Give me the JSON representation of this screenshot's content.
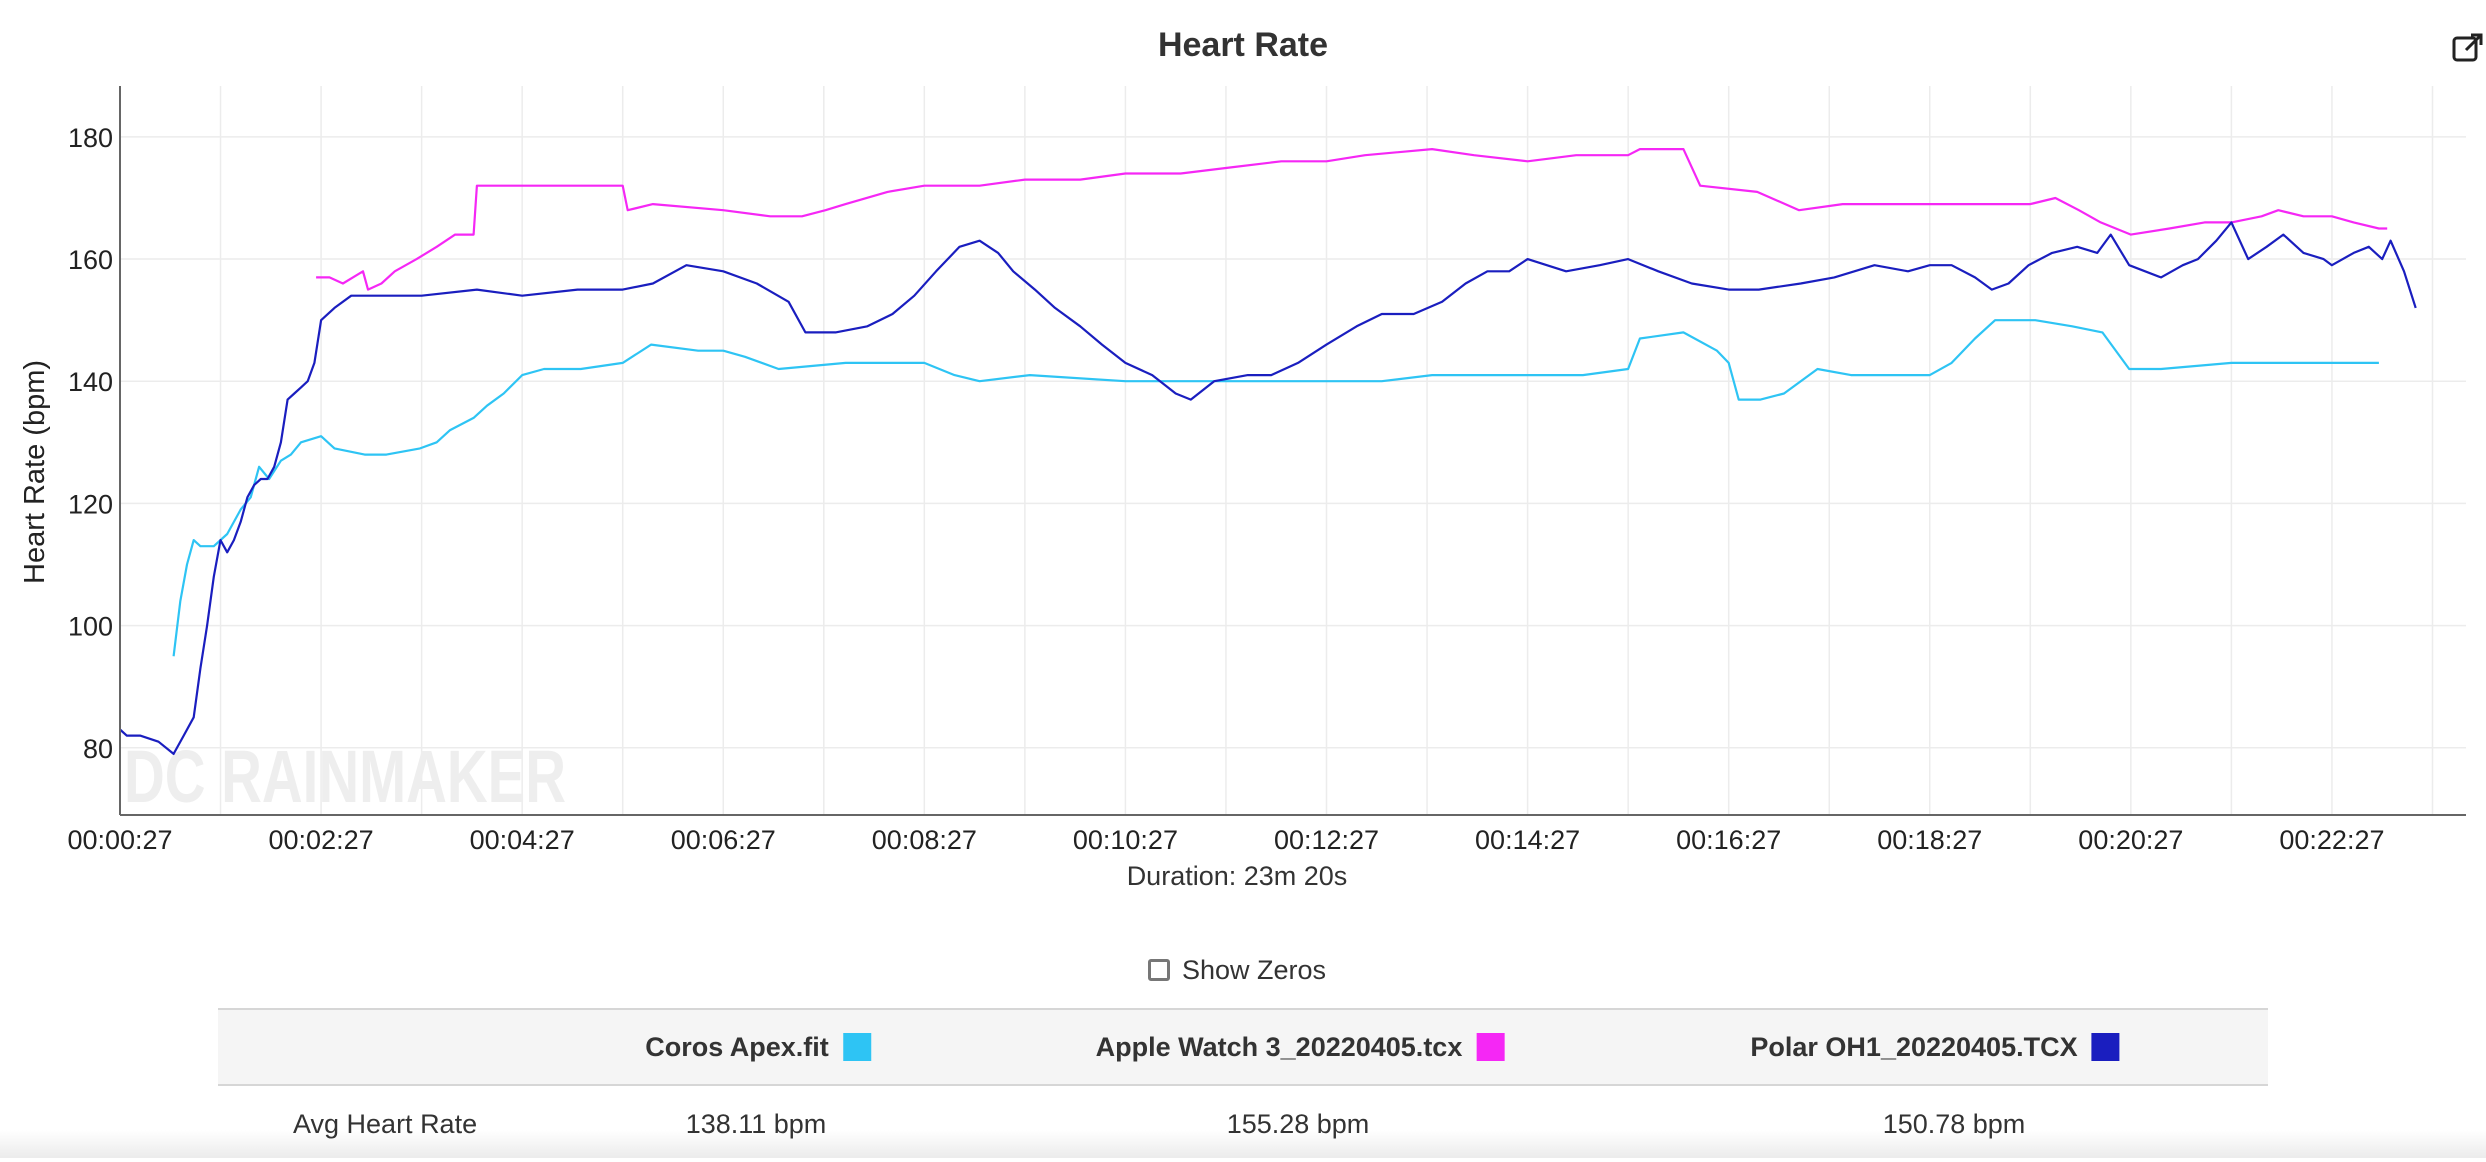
{
  "header": {
    "title": "Heart Rate",
    "export_icon": "external-link-icon"
  },
  "chart_data": {
    "type": "line",
    "title": "Heart Rate",
    "xlabel": "Duration: 23m 20s",
    "ylabel": "Heart Rate (bpm)",
    "xlim_seconds": [
      27,
      1427
    ],
    "ylim": [
      69,
      188
    ],
    "yticks": [
      80,
      100,
      120,
      140,
      160,
      180
    ],
    "xticks": [
      "00:00:27",
      "00:02:27",
      "00:04:27",
      "00:06:27",
      "00:08:27",
      "00:10:27",
      "00:12:27",
      "00:14:27",
      "00:16:27",
      "00:18:27",
      "00:20:27",
      "00:22:27"
    ],
    "grid": true,
    "watermark": "DC RAINMAKER",
    "series": [
      {
        "name": "Coros Apex.fit",
        "color": "#2ec4f4",
        "points": [
          [
            "00:00:59",
            95
          ],
          [
            "00:01:03",
            104
          ],
          [
            "00:01:07",
            110
          ],
          [
            "00:01:11",
            114
          ],
          [
            "00:01:15",
            113
          ],
          [
            "00:01:23",
            113
          ],
          [
            "00:01:31",
            115
          ],
          [
            "00:01:39",
            119
          ],
          [
            "00:01:45",
            121
          ],
          [
            "00:01:50",
            126
          ],
          [
            "00:01:56",
            124
          ],
          [
            "00:02:03",
            127
          ],
          [
            "00:02:09",
            128
          ],
          [
            "00:02:15",
            130
          ],
          [
            "00:02:27",
            131
          ],
          [
            "00:02:35",
            129
          ],
          [
            "00:02:53",
            128
          ],
          [
            "00:03:06",
            128
          ],
          [
            "00:03:26",
            129
          ],
          [
            "00:03:36",
            130
          ],
          [
            "00:03:44",
            132
          ],
          [
            "00:03:58",
            134
          ],
          [
            "00:04:06",
            136
          ],
          [
            "00:04:16",
            138
          ],
          [
            "00:04:27",
            141
          ],
          [
            "00:04:40",
            142
          ],
          [
            "00:05:02",
            142
          ],
          [
            "00:05:27",
            143
          ],
          [
            "00:05:44",
            146
          ],
          [
            "00:06:12",
            145
          ],
          [
            "00:06:27",
            145
          ],
          [
            "00:06:40",
            144
          ],
          [
            "00:07:00",
            142
          ],
          [
            "00:07:40",
            143
          ],
          [
            "00:08:27",
            143
          ],
          [
            "00:08:45",
            141
          ],
          [
            "00:09:00",
            140
          ],
          [
            "00:09:30",
            141
          ],
          [
            "00:10:27",
            140
          ],
          [
            "00:11:00",
            140
          ],
          [
            "00:11:30",
            140
          ],
          [
            "00:12:27",
            140
          ],
          [
            "00:13:00",
            140
          ],
          [
            "00:13:30",
            141
          ],
          [
            "00:14:27",
            141
          ],
          [
            "00:15:00",
            141
          ],
          [
            "00:15:27",
            142
          ],
          [
            "00:15:34",
            147
          ],
          [
            "00:16:00",
            148
          ],
          [
            "00:16:20",
            145
          ],
          [
            "00:16:27",
            143
          ],
          [
            "00:16:33",
            137
          ],
          [
            "00:16:46",
            137
          ],
          [
            "00:17:00",
            138
          ],
          [
            "00:17:20",
            142
          ],
          [
            "00:17:40",
            141
          ],
          [
            "00:18:27",
            141
          ],
          [
            "00:18:40",
            143
          ],
          [
            "00:18:54",
            147
          ],
          [
            "00:19:06",
            150
          ],
          [
            "00:19:30",
            150
          ],
          [
            "00:19:52",
            149
          ],
          [
            "00:20:10",
            148
          ],
          [
            "00:20:26",
            142
          ],
          [
            "00:20:45",
            142
          ],
          [
            "00:21:27",
            143
          ],
          [
            "00:22:00",
            143
          ],
          [
            "00:22:27",
            143
          ],
          [
            "00:22:55",
            143
          ]
        ]
      },
      {
        "name": "Apple Watch 3_20220405.tcx",
        "color": "#f527f5",
        "points": [
          [
            "00:02:24",
            157
          ],
          [
            "00:02:32",
            157
          ],
          [
            "00:02:40",
            156
          ],
          [
            "00:02:46",
            157
          ],
          [
            "00:02:52",
            158
          ],
          [
            "00:02:55",
            155
          ],
          [
            "00:03:03",
            156
          ],
          [
            "00:03:11",
            158
          ],
          [
            "00:03:24",
            160
          ],
          [
            "00:03:36",
            162
          ],
          [
            "00:03:47",
            164
          ],
          [
            "00:03:58",
            164
          ],
          [
            "00:04:00",
            172
          ],
          [
            "00:05:27",
            172
          ],
          [
            "00:05:30",
            168
          ],
          [
            "00:05:45",
            169
          ],
          [
            "00:06:27",
            168
          ],
          [
            "00:06:55",
            167
          ],
          [
            "00:07:14",
            167
          ],
          [
            "00:07:28",
            168
          ],
          [
            "00:07:40",
            169
          ],
          [
            "00:08:05",
            171
          ],
          [
            "00:08:27",
            172
          ],
          [
            "00:09:00",
            172
          ],
          [
            "00:09:27",
            173
          ],
          [
            "00:10:00",
            173
          ],
          [
            "00:10:27",
            174
          ],
          [
            "00:11:00",
            174
          ],
          [
            "00:11:30",
            175
          ],
          [
            "00:12:00",
            176
          ],
          [
            "00:12:27",
            176
          ],
          [
            "00:12:50",
            177
          ],
          [
            "00:13:30",
            178
          ],
          [
            "00:13:55",
            177
          ],
          [
            "00:14:27",
            176
          ],
          [
            "00:14:56",
            177
          ],
          [
            "00:15:27",
            177
          ],
          [
            "00:15:34",
            178
          ],
          [
            "00:16:00",
            178
          ],
          [
            "00:16:10",
            172
          ],
          [
            "00:16:44",
            171
          ],
          [
            "00:17:09",
            168
          ],
          [
            "00:17:35",
            169
          ],
          [
            "00:18:27",
            169
          ],
          [
            "00:19:00",
            169
          ],
          [
            "00:19:27",
            169
          ],
          [
            "00:19:42",
            170
          ],
          [
            "00:19:56",
            168
          ],
          [
            "00:20:09",
            166
          ],
          [
            "00:20:27",
            164
          ],
          [
            "00:20:50",
            165
          ],
          [
            "00:21:11",
            166
          ],
          [
            "00:21:27",
            166
          ],
          [
            "00:21:45",
            167
          ],
          [
            "00:21:55",
            168
          ],
          [
            "00:22:10",
            167
          ],
          [
            "00:22:27",
            167
          ],
          [
            "00:22:40",
            166
          ],
          [
            "00:22:55",
            165
          ],
          [
            "00:23:00",
            165
          ]
        ]
      },
      {
        "name": "Polar OH1_20220405.TCX",
        "color": "#1a1ebf",
        "points": [
          [
            "00:00:27",
            83
          ],
          [
            "00:00:31",
            82
          ],
          [
            "00:00:39",
            82
          ],
          [
            "00:00:50",
            81
          ],
          [
            "00:00:59",
            79
          ],
          [
            "00:01:05",
            82
          ],
          [
            "00:01:11",
            85
          ],
          [
            "00:01:15",
            93
          ],
          [
            "00:01:19",
            100
          ],
          [
            "00:01:23",
            108
          ],
          [
            "00:01:27",
            114
          ],
          [
            "00:01:31",
            112
          ],
          [
            "00:01:35",
            114
          ],
          [
            "00:01:39",
            117
          ],
          [
            "00:01:43",
            121
          ],
          [
            "00:01:47",
            123
          ],
          [
            "00:01:51",
            124
          ],
          [
            "00:01:55",
            124
          ],
          [
            "00:01:59",
            126
          ],
          [
            "00:02:03",
            130
          ],
          [
            "00:02:07",
            137
          ],
          [
            "00:02:11",
            138
          ],
          [
            "00:02:15",
            139
          ],
          [
            "00:02:19",
            140
          ],
          [
            "00:02:23",
            143
          ],
          [
            "00:02:27",
            150
          ],
          [
            "00:02:35",
            152
          ],
          [
            "00:02:45",
            154
          ],
          [
            "00:02:55",
            154
          ],
          [
            "00:03:27",
            154
          ],
          [
            "00:04:00",
            155
          ],
          [
            "00:04:27",
            154
          ],
          [
            "00:05:00",
            155
          ],
          [
            "00:05:27",
            155
          ],
          [
            "00:05:45",
            156
          ],
          [
            "00:06:05",
            159
          ],
          [
            "00:06:27",
            158
          ],
          [
            "00:06:47",
            156
          ],
          [
            "00:07:06",
            153
          ],
          [
            "00:07:16",
            148
          ],
          [
            "00:07:34",
            148
          ],
          [
            "00:07:53",
            149
          ],
          [
            "00:08:08",
            151
          ],
          [
            "00:08:21",
            154
          ],
          [
            "00:08:34",
            158
          ],
          [
            "00:08:48",
            162
          ],
          [
            "00:09:00",
            163
          ],
          [
            "00:09:11",
            161
          ],
          [
            "00:09:20",
            158
          ],
          [
            "00:09:33",
            155
          ],
          [
            "00:09:45",
            152
          ],
          [
            "00:10:00",
            149
          ],
          [
            "00:10:13",
            146
          ],
          [
            "00:10:27",
            143
          ],
          [
            "00:10:43",
            141
          ],
          [
            "00:10:57",
            138
          ],
          [
            "00:11:06",
            137
          ],
          [
            "00:11:20",
            140
          ],
          [
            "00:11:40",
            141
          ],
          [
            "00:11:54",
            141
          ],
          [
            "00:12:10",
            143
          ],
          [
            "00:12:27",
            146
          ],
          [
            "00:12:45",
            149
          ],
          [
            "00:13:00",
            151
          ],
          [
            "00:13:19",
            151
          ],
          [
            "00:13:36",
            153
          ],
          [
            "00:13:50",
            156
          ],
          [
            "00:14:03",
            158
          ],
          [
            "00:14:16",
            158
          ],
          [
            "00:14:27",
            160
          ],
          [
            "00:14:50",
            158
          ],
          [
            "00:15:10",
            159
          ],
          [
            "00:15:27",
            160
          ],
          [
            "00:15:45",
            158
          ],
          [
            "00:16:05",
            156
          ],
          [
            "00:16:27",
            155
          ],
          [
            "00:16:45",
            155
          ],
          [
            "00:17:10",
            156
          ],
          [
            "00:17:30",
            157
          ],
          [
            "00:17:54",
            159
          ],
          [
            "00:18:14",
            158
          ],
          [
            "00:18:27",
            159
          ],
          [
            "00:18:40",
            159
          ],
          [
            "00:18:54",
            157
          ],
          [
            "00:19:04",
            155
          ],
          [
            "00:19:14",
            156
          ],
          [
            "00:19:26",
            159
          ],
          [
            "00:19:40",
            161
          ],
          [
            "00:19:55",
            162
          ],
          [
            "00:20:07",
            161
          ],
          [
            "00:20:15",
            164
          ],
          [
            "00:20:26",
            159
          ],
          [
            "00:20:45",
            157
          ],
          [
            "00:20:58",
            159
          ],
          [
            "00:21:07",
            160
          ],
          [
            "00:21:18",
            163
          ],
          [
            "00:21:27",
            166
          ],
          [
            "00:21:37",
            160
          ],
          [
            "00:21:48",
            162
          ],
          [
            "00:21:58",
            164
          ],
          [
            "00:22:10",
            161
          ],
          [
            "00:22:22",
            160
          ],
          [
            "00:22:27",
            159
          ],
          [
            "00:22:40",
            161
          ],
          [
            "00:22:49",
            162
          ],
          [
            "00:22:57",
            160
          ],
          [
            "00:23:02",
            163
          ],
          [
            "00:23:10",
            158
          ],
          [
            "00:23:17",
            152
          ]
        ]
      }
    ]
  },
  "controls": {
    "show_zeros_label": "Show Zeros",
    "show_zeros_checked": false
  },
  "stats_table": {
    "columns": [
      {
        "name": "Coros Apex.fit",
        "color": "#2ec4f4"
      },
      {
        "name": "Apple Watch 3_20220405.tcx",
        "color": "#f527f5"
      },
      {
        "name": "Polar OH1_20220405.TCX",
        "color": "#1a1ebf"
      }
    ],
    "rows": [
      {
        "label": "Avg Heart Rate",
        "values": [
          "138.11 bpm",
          "155.28 bpm",
          "150.78 bpm"
        ]
      }
    ]
  }
}
